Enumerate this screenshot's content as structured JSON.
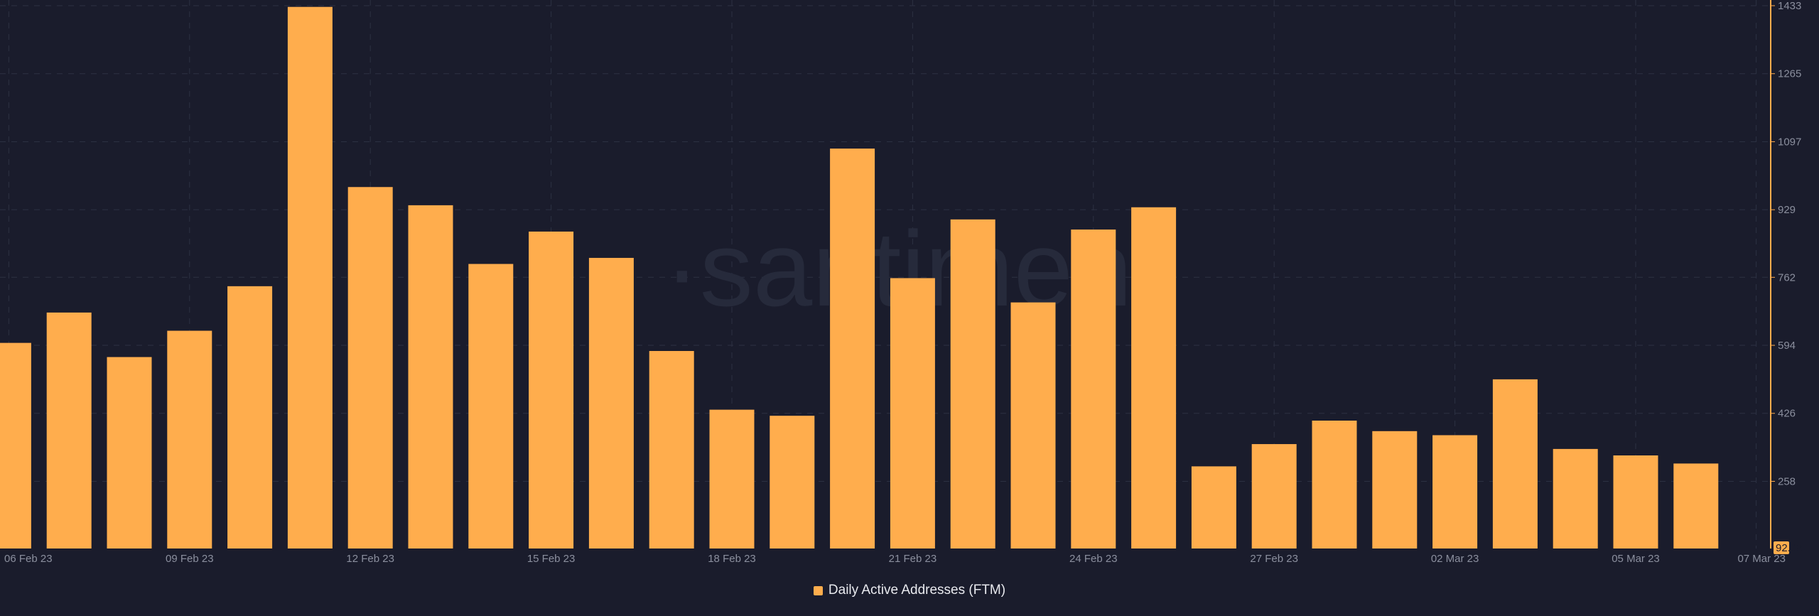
{
  "watermark": "·santiment",
  "chart_data": {
    "type": "bar",
    "series": [
      {
        "name": "Daily Active Addresses (FTM)",
        "color": "#ffad4d",
        "values": [
          600,
          675,
          565,
          630,
          740,
          1430,
          985,
          940,
          795,
          875,
          810,
          580,
          435,
          420,
          1080,
          760,
          905,
          700,
          880,
          935,
          295,
          350,
          408,
          382,
          372,
          510,
          338,
          322,
          302
        ]
      }
    ],
    "dates": [
      "06 Feb 23",
      "07 Feb 23",
      "08 Feb 23",
      "09 Feb 23",
      "10 Feb 23",
      "11 Feb 23",
      "12 Feb 23",
      "13 Feb 23",
      "14 Feb 23",
      "15 Feb 23",
      "16 Feb 23",
      "17 Feb 23",
      "18 Feb 23",
      "19 Feb 23",
      "20 Feb 23",
      "21 Feb 23",
      "22 Feb 23",
      "23 Feb 23",
      "24 Feb 23",
      "25 Feb 23",
      "26 Feb 23",
      "27 Feb 23",
      "28 Feb 23",
      "01 Mar 23",
      "02 Mar 23",
      "03 Mar 23",
      "04 Mar 23",
      "05 Mar 23",
      "06 Mar 23"
    ],
    "x_tick_labels": [
      "06 Feb 23",
      "09 Feb 23",
      "12 Feb 23",
      "15 Feb 23",
      "18 Feb 23",
      "21 Feb 23",
      "24 Feb 23",
      "27 Feb 23",
      "02 Mar 23",
      "05 Mar 23",
      "07 Mar 23"
    ],
    "y_ticks": [
      258,
      426,
      594,
      762,
      929,
      1097,
      1265,
      1433
    ],
    "y_bottom_label": "92.08",
    "ylim": [
      92.08,
      1433
    ],
    "grid": true,
    "legend_position": "bottom-center",
    "axis_color": "#ffad4d"
  }
}
